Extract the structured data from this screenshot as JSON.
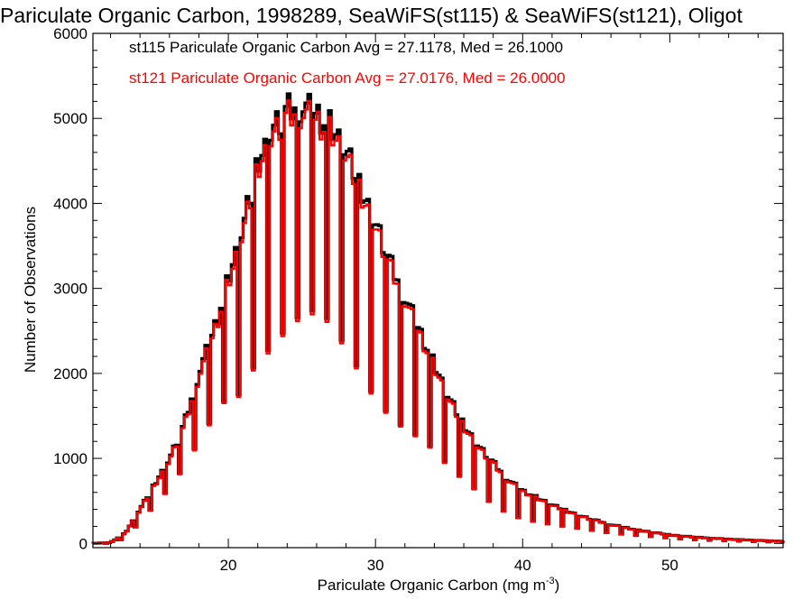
{
  "colors": {
    "series1": "#000000",
    "series2": "#ff0000",
    "axes": "#000000",
    "background": "#ffffff"
  },
  "chart_data": {
    "type": "bar",
    "style": "step histogram",
    "title": "Pariculate Organic Carbon, 1998289, SeaWiFS(st115) & SeaWiFS(st121), Oligot",
    "xlabel": "Pariculate Organic Carbon (mg m",
    "xlabel_sup": "-3",
    "xlabel_end": ")",
    "ylabel": "Number of Observations",
    "xlim": [
      10.8,
      57.7
    ],
    "ylim": [
      -50,
      6000
    ],
    "xticks": [
      20,
      30,
      40,
      50
    ],
    "xtick_labels": [
      "20",
      "30",
      "40",
      "50"
    ],
    "yticks": [
      0,
      1000,
      2000,
      3000,
      4000,
      5000,
      6000
    ],
    "ytick_labels": [
      "0",
      "1000",
      "2000",
      "3000",
      "4000",
      "5000",
      "6000"
    ],
    "grid": false,
    "legend_position": "top-left",
    "legend": [
      {
        "text": "st115 Pariculate Organic Carbon Avg = 27.1178, Med = 26.1000",
        "color": "#000000"
      },
      {
        "text": "st121 Pariculate Organic Carbon Avg = 27.0176, Med = 26.0000",
        "color": "#ff0000"
      }
    ],
    "bin_width": 0.2,
    "anchors": {
      "high": [
        [
          10.8,
          0
        ],
        [
          12.0,
          10
        ],
        [
          13.0,
          120
        ],
        [
          14.0,
          400
        ],
        [
          15.0,
          700
        ],
        [
          16.0,
          1000
        ],
        [
          17.0,
          1400
        ],
        [
          18.0,
          2000
        ],
        [
          19.0,
          2500
        ],
        [
          20.0,
          3100
        ],
        [
          21.0,
          3700
        ],
        [
          22.0,
          4500
        ],
        [
          23.0,
          4900
        ],
        [
          24.0,
          5100
        ],
        [
          25.0,
          5150
        ],
        [
          26.0,
          5050
        ],
        [
          27.0,
          4900
        ],
        [
          28.0,
          4600
        ],
        [
          29.0,
          4200
        ],
        [
          30.0,
          3800
        ],
        [
          31.0,
          3300
        ],
        [
          32.0,
          2900
        ],
        [
          33.0,
          2500
        ],
        [
          34.0,
          2100
        ],
        [
          35.0,
          1700
        ],
        [
          36.0,
          1400
        ],
        [
          37.0,
          1150
        ],
        [
          38.0,
          950
        ],
        [
          39.0,
          750
        ],
        [
          40.0,
          620
        ],
        [
          42.0,
          450
        ],
        [
          44.0,
          320
        ],
        [
          46.0,
          220
        ],
        [
          48.0,
          150
        ],
        [
          50.0,
          100
        ],
        [
          52.0,
          70
        ],
        [
          54.0,
          50
        ],
        [
          56.0,
          35
        ],
        [
          57.7,
          25
        ]
      ],
      "low": [
        [
          10.8,
          0
        ],
        [
          12.0,
          0
        ],
        [
          13.0,
          60
        ],
        [
          14.0,
          250
        ],
        [
          15.0,
          450
        ],
        [
          16.0,
          650
        ],
        [
          17.0,
          900
        ],
        [
          18.0,
          1200
        ],
        [
          19.0,
          1500
        ],
        [
          20.0,
          1750
        ],
        [
          21.0,
          1750
        ],
        [
          22.0,
          2200
        ],
        [
          23.0,
          2300
        ],
        [
          24.0,
          2550
        ],
        [
          25.0,
          2700
        ],
        [
          26.0,
          2750
        ],
        [
          27.0,
          2600
        ],
        [
          28.0,
          2300
        ],
        [
          29.0,
          2000
        ],
        [
          30.0,
          1700
        ],
        [
          31.0,
          1500
        ],
        [
          32.0,
          1350
        ],
        [
          33.0,
          1250
        ],
        [
          34.0,
          1100
        ],
        [
          35.0,
          900
        ],
        [
          36.0,
          750
        ],
        [
          37.0,
          600
        ],
        [
          38.0,
          450
        ],
        [
          39.0,
          350
        ],
        [
          40.0,
          280
        ],
        [
          42.0,
          220
        ],
        [
          44.0,
          170
        ],
        [
          46.0,
          120
        ],
        [
          48.0,
          90
        ],
        [
          50.0,
          60
        ],
        [
          52.0,
          40
        ],
        [
          54.0,
          30
        ],
        [
          56.0,
          20
        ],
        [
          57.7,
          15
        ]
      ]
    },
    "series": [
      {
        "id": "st115",
        "color": "#000000",
        "value_scale": 1.0,
        "bin_offset": 0.0
      },
      {
        "id": "st121",
        "color": "#ff0000",
        "value_scale": 0.985,
        "bin_offset": 0.0
      }
    ]
  }
}
